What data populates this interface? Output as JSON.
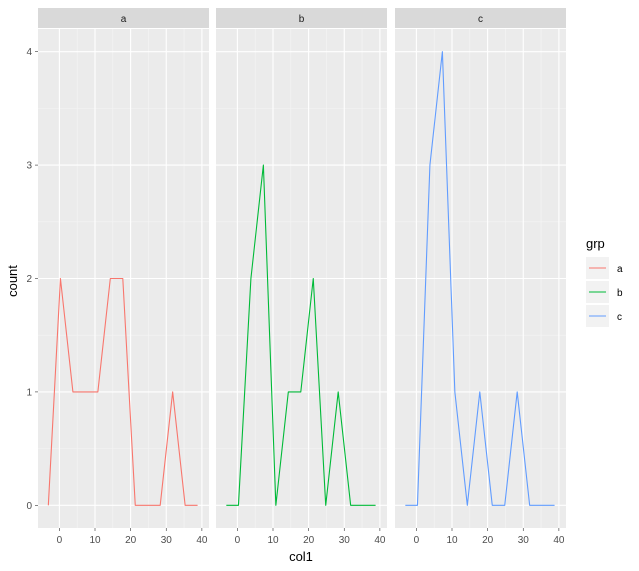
{
  "chart_data": {
    "type": "line",
    "xlabel": "col1",
    "ylabel": "count",
    "xlim": [
      -6,
      42
    ],
    "ylim": [
      -0.2,
      4.2
    ],
    "x_ticks": [
      0,
      10,
      20,
      30,
      40
    ],
    "y_ticks": [
      0,
      1,
      2,
      3,
      4
    ],
    "grid": true,
    "legend": {
      "title": "grp",
      "position": "right",
      "entries": [
        {
          "label": "a",
          "color": "#F8766D"
        },
        {
          "label": "b",
          "color": "#00BA38"
        },
        {
          "label": "c",
          "color": "#619CFF"
        }
      ]
    },
    "panels": [
      {
        "strip": "a",
        "color": "#F8766D",
        "x": [
          -3.1,
          0.3,
          3.8,
          7.3,
          10.8,
          14.3,
          17.8,
          21.3,
          24.8,
          28.3,
          31.8,
          35.3,
          38.8
        ],
        "y": [
          0,
          2,
          1,
          1,
          1,
          2,
          2,
          0,
          0,
          0,
          1,
          0,
          0
        ]
      },
      {
        "strip": "b",
        "color": "#00BA38",
        "x": [
          -3.1,
          0.3,
          3.8,
          7.3,
          10.8,
          14.3,
          17.8,
          21.3,
          24.8,
          28.3,
          31.8,
          35.3,
          38.8
        ],
        "y": [
          0,
          0,
          2,
          3,
          0,
          1,
          1,
          2,
          0,
          1,
          0,
          0,
          0
        ]
      },
      {
        "strip": "c",
        "color": "#619CFF",
        "x": [
          -3.1,
          0.3,
          3.8,
          7.3,
          10.8,
          14.3,
          17.8,
          21.3,
          24.8,
          28.3,
          31.8,
          35.3,
          38.8
        ],
        "y": [
          0,
          0,
          3,
          4,
          1,
          0,
          1,
          0,
          0,
          1,
          0,
          0,
          0
        ]
      }
    ]
  }
}
